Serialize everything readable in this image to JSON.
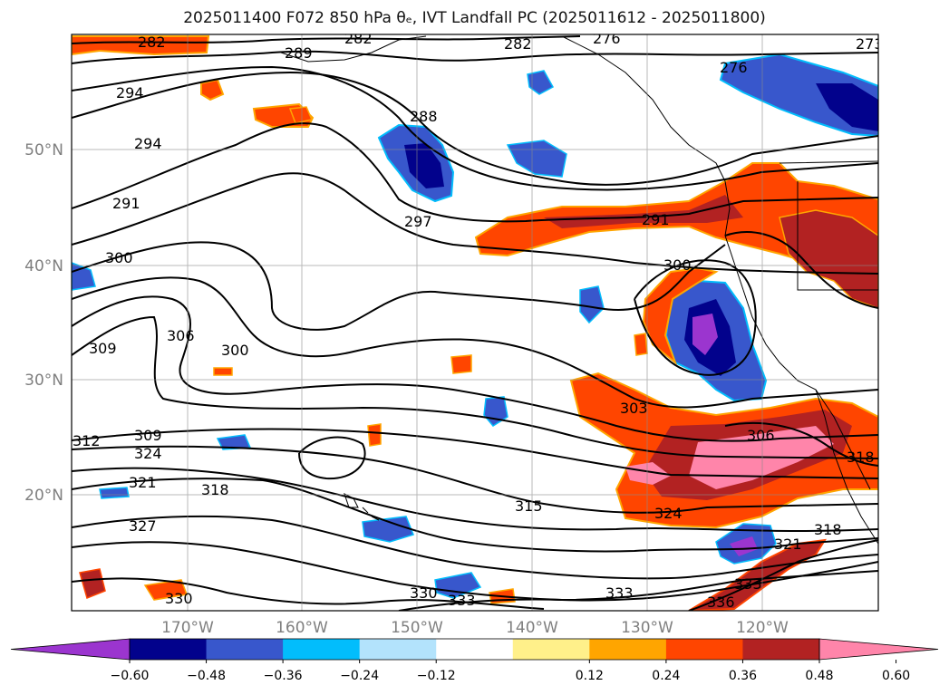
{
  "title": "2025011400 F072 850 hPa θₑ, IVT Landfall PC (2025011612 - 2025011800)",
  "map": {
    "lat_ticks": [
      "50°N",
      "40°N",
      "30°N",
      "20°N"
    ],
    "lon_ticks": [
      "170°W",
      "160°W",
      "150°W",
      "140°W",
      "130°W",
      "120°W"
    ],
    "contour_labels": [
      "282",
      "289",
      "282",
      "282",
      "276",
      "276",
      "273",
      "294",
      "288",
      "294",
      "291",
      "297",
      "291",
      "300",
      "300",
      "309",
      "306",
      "300",
      "303",
      "306",
      "309",
      "312",
      "324",
      "321",
      "318",
      "315",
      "324",
      "318",
      "327",
      "321",
      "330",
      "330",
      "333",
      "333",
      "336",
      "333",
      "318"
    ]
  },
  "colorbar": {
    "ticks": [
      "−0.60",
      "−0.48",
      "−0.36",
      "−0.24",
      "−0.12",
      "0.12",
      "0.24",
      "0.36",
      "0.48",
      "0.60"
    ],
    "colors": [
      "#9b35cf",
      "#02028c",
      "#3857cc",
      "#02bdfc",
      "#b3e3fc",
      "#ffffff",
      "#fff08a",
      "#ffa500",
      "#ff4500",
      "#b22222",
      "#ff85aa"
    ]
  }
}
